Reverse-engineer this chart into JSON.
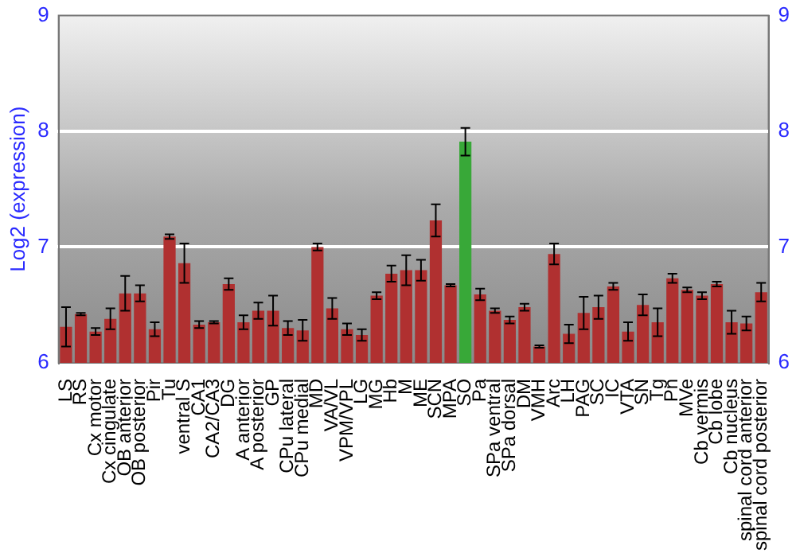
{
  "chart_data": {
    "type": "bar",
    "ylabel": "Log2 (expression)",
    "categories": [
      "LS",
      "RS",
      "Cx motor",
      "Cx cingulate",
      "OB anterior",
      "OB posterior",
      "Pir",
      "Tu",
      "ventral S",
      "CA1",
      "CA2/CA3",
      "DG",
      "A anterior",
      "A posterior",
      "GP",
      "CPu lateral",
      "CPu medial",
      "MD",
      "VA/VL",
      "VPM/VPL",
      "LG",
      "MG",
      "Hb",
      "M",
      "ME",
      "SCN",
      "MPA",
      "SO",
      "Pa",
      "SPa ventral",
      "SPa dorsal",
      "DM",
      "VMH",
      "Arc",
      "LH",
      "PAG",
      "SC",
      "IC",
      "VTA",
      "SN",
      "Tg",
      "Pn",
      "MVe",
      "Cb vermis",
      "Cb lobe",
      "Cb nucleus",
      "spinal cord anterior",
      "spinal cord posterior"
    ],
    "values": [
      6.31,
      6.42,
      6.27,
      6.38,
      6.6,
      6.6,
      6.29,
      7.09,
      6.86,
      6.33,
      6.35,
      6.68,
      6.35,
      6.45,
      6.45,
      6.3,
      6.28,
      7.0,
      6.47,
      6.29,
      6.24,
      6.58,
      6.77,
      6.8,
      6.8,
      7.23,
      6.67,
      7.91,
      6.59,
      6.45,
      6.37,
      6.48,
      6.14,
      6.94,
      6.25,
      6.43,
      6.48,
      6.66,
      6.27,
      6.5,
      6.35,
      6.73,
      6.63,
      6.58,
      6.68,
      6.35,
      6.34,
      6.61
    ],
    "errors": [
      0.17,
      0.01,
      0.03,
      0.09,
      0.15,
      0.07,
      0.06,
      0.02,
      0.17,
      0.03,
      0.01,
      0.05,
      0.06,
      0.07,
      0.13,
      0.06,
      0.09,
      0.03,
      0.09,
      0.05,
      0.05,
      0.03,
      0.07,
      0.13,
      0.09,
      0.14,
      0.01,
      0.12,
      0.05,
      0.02,
      0.03,
      0.03,
      0.01,
      0.09,
      0.08,
      0.14,
      0.1,
      0.03,
      0.08,
      0.09,
      0.12,
      0.04,
      0.02,
      0.03,
      0.02,
      0.1,
      0.06,
      0.08
    ],
    "colors": [
      "#b03030",
      "#b03030",
      "#b03030",
      "#b03030",
      "#b03030",
      "#b03030",
      "#b03030",
      "#b03030",
      "#b03030",
      "#b03030",
      "#b03030",
      "#b03030",
      "#b03030",
      "#b03030",
      "#b03030",
      "#b03030",
      "#b03030",
      "#b03030",
      "#b03030",
      "#b03030",
      "#b03030",
      "#b03030",
      "#b03030",
      "#b03030",
      "#b03030",
      "#b03030",
      "#b03030",
      "#38a838",
      "#b03030",
      "#b03030",
      "#b03030",
      "#b03030",
      "#b03030",
      "#b03030",
      "#b03030",
      "#b03030",
      "#b03030",
      "#b03030",
      "#b03030",
      "#b03030",
      "#b03030",
      "#b03030",
      "#b03030",
      "#b03030",
      "#b03030",
      "#b03030",
      "#b03030",
      "#b03030"
    ],
    "ylim": [
      6,
      9
    ],
    "yticks": [
      6,
      7,
      8,
      9
    ],
    "y2lim": [
      6,
      9
    ],
    "y2ticks": [
      6,
      7,
      8,
      9
    ],
    "grid": "y",
    "legend": false
  }
}
